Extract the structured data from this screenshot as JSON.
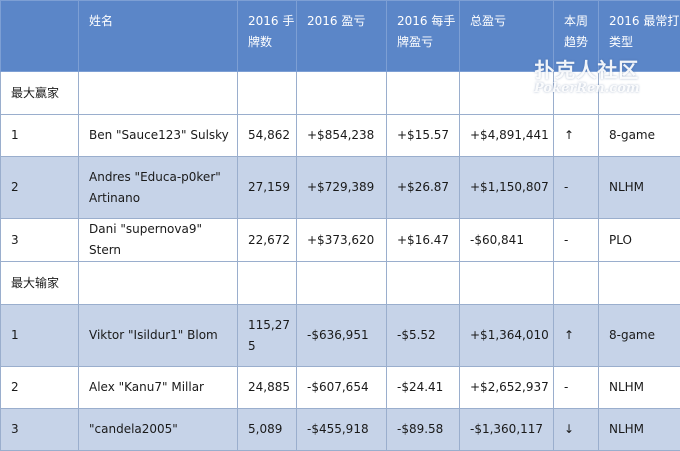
{
  "header": {
    "name": "姓名",
    "hands": "2016 手牌数",
    "profit": "2016 盈亏",
    "per_hand": "2016 每手牌盈亏",
    "total": "总盈亏",
    "week_trend": "本周趋势",
    "game": "2016 最常打类型"
  },
  "winners_label": "最大赢家",
  "losers_label": "最大输家",
  "winners": [
    {
      "rank": "1",
      "name": "Ben \"Sauce123\" Sulsky",
      "hands": "54,862",
      "profit": "+$854,238",
      "per_hand": "+$15.57",
      "total": "+$4,891,441",
      "trend": "↑",
      "game": "8-game"
    },
    {
      "rank": "2",
      "name": "Andres \"Educa-p0ker\" Artinano",
      "hands": "27,159",
      "profit": "+$729,389",
      "per_hand": "+$26.87",
      "total": "+$1,150,807",
      "trend": "-",
      "game": "NLHM"
    },
    {
      "rank": "3",
      "name": "Dani \"supernova9\" Stern",
      "hands": "22,672",
      "profit": "+$373,620",
      "per_hand": "+$16.47",
      "total": "-$60,841",
      "trend": "-",
      "game": "PLO"
    }
  ],
  "losers": [
    {
      "rank": "1",
      "name": "Viktor \"Isildur1\" Blom",
      "hands": "115,275",
      "profit": "-$636,951",
      "per_hand": "-$5.52",
      "total": "+$1,364,010",
      "trend": "↑",
      "game": "8-game"
    },
    {
      "rank": "2",
      "name": "Alex \"Kanu7\" Millar",
      "hands": "24,885",
      "profit": "-$607,654",
      "per_hand": "-$24.41",
      "total": "+$2,652,937",
      "trend": "-",
      "game": "NLHM"
    },
    {
      "rank": "3",
      "name": "\"candela2005\"",
      "hands": "5,089",
      "profit": "-$455,918",
      "per_hand": "-$89.58",
      "total": "-$1,360,117",
      "trend": "↓",
      "game": "NLHM"
    }
  ],
  "watermark": {
    "cn": "扑克人社区",
    "en": "PokerRen.com"
  }
}
